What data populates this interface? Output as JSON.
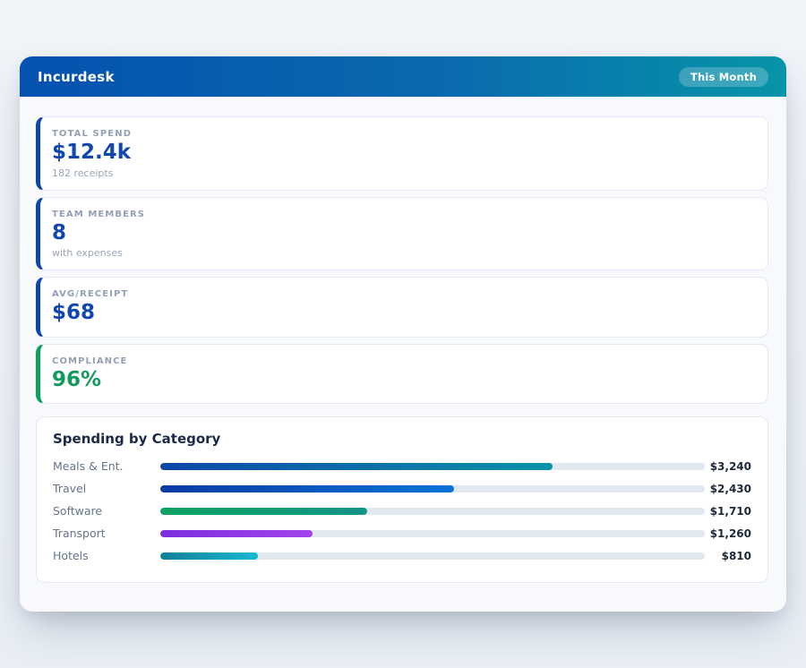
{
  "app": {
    "title": "Incurdesk",
    "period_badge": "This Month"
  },
  "colors": {
    "page_bg": "#edf1f7",
    "panel_bg": "#f7f9fc",
    "header_gradient_start": "#0551b0",
    "header_gradient_end": "#0794a8",
    "card_border": "#e4e9f2",
    "bar_track": "#e2e8f0",
    "stat_accent_blue": "#0d47a8",
    "stat_accent_green": "#0f9f5f"
  },
  "stats": [
    {
      "label": "TOTAL SPEND",
      "value": "$12.4k",
      "sub": "182 receipts",
      "accent": "#0d47a8",
      "value_color": "#1147ae"
    },
    {
      "label": "TEAM MEMBERS",
      "value": "8",
      "sub": "with expenses",
      "accent": "#0d47a8",
      "value_color": "#1147ae"
    },
    {
      "label": "AVG/RECEIPT",
      "value": "$68",
      "sub": "",
      "accent": "#0d47a8",
      "value_color": "#1147ae"
    },
    {
      "label": "COMPLIANCE",
      "value": "96%",
      "sub": "",
      "accent": "#0f9f5f",
      "value_color": "#119a5c"
    }
  ],
  "chart_data": {
    "type": "bar",
    "orientation": "horizontal",
    "title": "Spending by Category",
    "categories": [
      "Meals & Ent.",
      "Travel",
      "Software",
      "Transport",
      "Hotels"
    ],
    "values": [
      3240,
      2430,
      1710,
      1260,
      810
    ],
    "value_labels": [
      "$3,240",
      "$2,430",
      "$1,710",
      "$1,260",
      "$810"
    ],
    "axis_max": 4500,
    "grid": false,
    "legend": false,
    "bar_gradients": [
      [
        "#0d47a8",
        "#0a93a8"
      ],
      [
        "#0b3aa5",
        "#0a74d6"
      ],
      [
        "#0ba360",
        "#149488"
      ],
      [
        "#7c2ee0",
        "#a244ea"
      ],
      [
        "#0f7f98",
        "#16b8d2"
      ]
    ]
  }
}
